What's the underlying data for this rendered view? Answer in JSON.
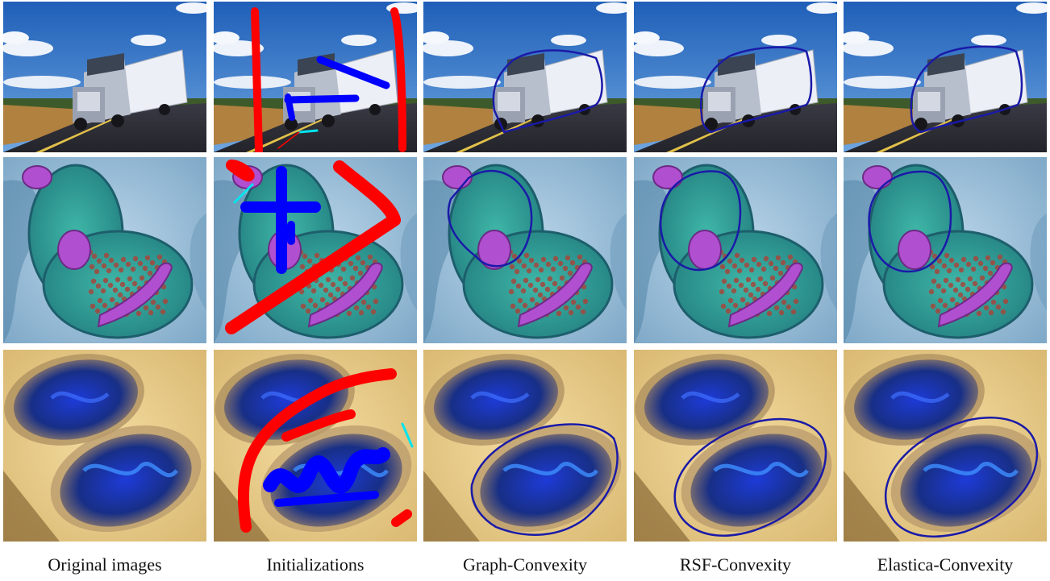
{
  "figure": {
    "columns": [
      {
        "key": "original",
        "label": "Original images"
      },
      {
        "key": "init",
        "label": "Initializations"
      },
      {
        "key": "graph",
        "label": "Graph-Convexity"
      },
      {
        "key": "rsf",
        "label": "RSF-Convexity"
      },
      {
        "key": "elastica",
        "label": "Elastica-Convexity"
      }
    ],
    "rows": [
      {
        "key": "truck",
        "subject": "truck on road"
      },
      {
        "key": "cell",
        "subject": "microscopy cell with mitochondria"
      },
      {
        "key": "mineral",
        "subject": "blue mineral slices on beige background"
      }
    ]
  },
  "colors": {
    "background_marker": "#ff0000",
    "foreground_marker": "#0000ff",
    "link_marker": "#00e5ee",
    "contour": "#1a1aa8"
  }
}
